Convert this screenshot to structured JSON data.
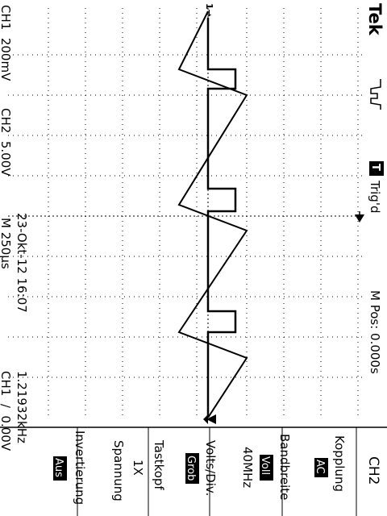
{
  "brand": "Tek",
  "trigger": {
    "state_badge": "T",
    "state_label": "Trig'd"
  },
  "acquisition_icon": "acquire-waveform-icon",
  "horizontal": {
    "position": "M Pos: 0.000s",
    "timebase": "M 250µs"
  },
  "channels": {
    "ch1_scale": "CH1  200mV",
    "ch2_scale": "CH2  5.00V",
    "ch1_marker": "1→"
  },
  "trigger_readout": "CH1  ∕  0.00V",
  "frequency": "1.21932kHz",
  "datetime": "23-Okt-12 16:07",
  "menu": {
    "title": "CH2",
    "items": [
      {
        "label": "Kopplung",
        "value": "AC",
        "value_highlight": true
      },
      {
        "label": "Bandbreite",
        "value": "Voll",
        "value_highlight": true,
        "sub": "40MHz"
      },
      {
        "label": "Volts/Div.",
        "value": "Grob",
        "value_highlight": true
      },
      {
        "label": "Tastkopf",
        "value": "1X",
        "value_highlight": false,
        "sub": "Spannung"
      },
      {
        "label": "Invertierung",
        "value": "Aus",
        "value_highlight": true
      }
    ]
  },
  "colors": {
    "background": "#ffffff",
    "foreground": "#000000",
    "grid": "#000000"
  }
}
